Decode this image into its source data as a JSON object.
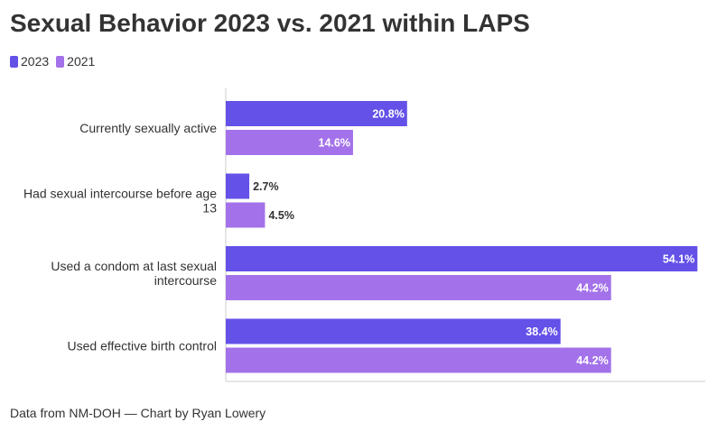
{
  "title": "Sexual Behavior 2023 vs. 2021 within LAPS",
  "footer": "Data from NM-DOH — Chart by Ryan Lowery",
  "colors": {
    "series_2023": "#6351e8",
    "series_2021": "#a372ea",
    "axis": "#cccccc",
    "label_dark": "#333333",
    "label_light": "#ffffff"
  },
  "chart_data": {
    "type": "bar",
    "orientation": "horizontal",
    "title": "Sexual Behavior 2023 vs. 2021 within LAPS",
    "categories": [
      "Currently sexually active",
      "Had sexual intercourse before age 13",
      "Used a condom at last sexual intercourse",
      "Used effective birth control"
    ],
    "series": [
      {
        "name": "2023",
        "values": [
          20.8,
          2.7,
          54.1,
          38.4
        ],
        "labels": [
          "20.8%",
          "2.7%",
          "54.1%",
          "38.4%"
        ]
      },
      {
        "name": "2021",
        "values": [
          14.6,
          4.5,
          44.2,
          44.2
        ],
        "labels": [
          "14.6%",
          "4.5%",
          "44.2%",
          "44.2%"
        ]
      }
    ],
    "xlim": [
      0,
      55
    ],
    "legend_position": "top-left",
    "grid": false
  }
}
